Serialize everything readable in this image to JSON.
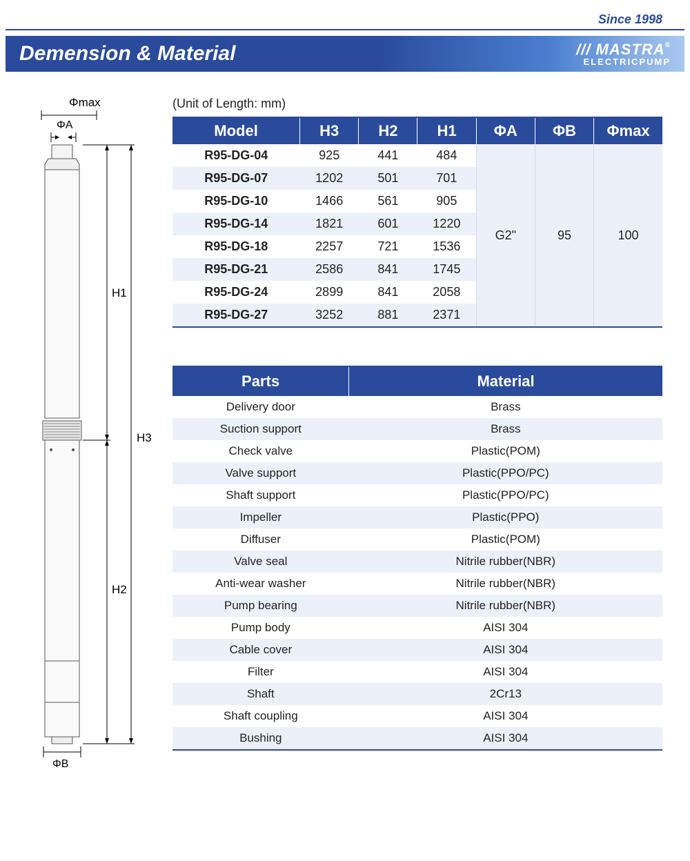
{
  "header": {
    "tagline": "Since 1998",
    "title": "Demension & Material",
    "brand_logo": "MASTRA",
    "brand_sub": "ELECTRICPUMP"
  },
  "diagram": {
    "labels": {
      "phimax": "Φmax",
      "phiA": "ΦA",
      "phiB": "ΦB",
      "H1": "H1",
      "H2": "H2",
      "H3": "H3"
    }
  },
  "unit_label": "(Unit of Length: mm)",
  "spec_table": {
    "headers": [
      "Model",
      "H3",
      "H2",
      "H1",
      "ΦA",
      "ΦB",
      "Φmax"
    ],
    "rows": [
      {
        "model": "R95-DG-04",
        "h3": "925",
        "h2": "441",
        "h1": "484"
      },
      {
        "model": "R95-DG-07",
        "h3": "1202",
        "h2": "501",
        "h1": "701"
      },
      {
        "model": "R95-DG-10",
        "h3": "1466",
        "h2": "561",
        "h1": "905"
      },
      {
        "model": "R95-DG-14",
        "h3": "1821",
        "h2": "601",
        "h1": "1220"
      },
      {
        "model": "R95-DG-18",
        "h3": "2257",
        "h2": "721",
        "h1": "1536"
      },
      {
        "model": "R95-DG-21",
        "h3": "2586",
        "h2": "841",
        "h1": "1745"
      },
      {
        "model": "R95-DG-24",
        "h3": "2899",
        "h2": "841",
        "h1": "2058"
      },
      {
        "model": "R95-DG-27",
        "h3": "3252",
        "h2": "881",
        "h1": "2371"
      }
    ],
    "merged": {
      "phiA": "G2\"",
      "phiB": "95",
      "phimax": "100"
    }
  },
  "parts_table": {
    "headers": [
      "Parts",
      "Material"
    ],
    "rows": [
      {
        "part": "Delivery door",
        "material": "Brass"
      },
      {
        "part": "Suction support",
        "material": "Brass"
      },
      {
        "part": "Check valve",
        "material": "Plastic(POM)"
      },
      {
        "part": "Valve support",
        "material": "Plastic(PPO/PC)"
      },
      {
        "part": "Shaft support",
        "material": "Plastic(PPO/PC)"
      },
      {
        "part": "Impeller",
        "material": "Plastic(PPO)"
      },
      {
        "part": "Diffuser",
        "material": "Plastic(POM)"
      },
      {
        "part": "Valve seal",
        "material": "Nitrile rubber(NBR)"
      },
      {
        "part": "Anti-wear washer",
        "material": "Nitrile rubber(NBR)"
      },
      {
        "part": "Pump bearing",
        "material": "Nitrile rubber(NBR)"
      },
      {
        "part": "Pump body",
        "material": "AISI 304"
      },
      {
        "part": "Cable cover",
        "material": "AISI 304"
      },
      {
        "part": "Filter",
        "material": "AISI 304"
      },
      {
        "part": "Shaft",
        "material": "2Cr13"
      },
      {
        "part": "Shaft coupling",
        "material": "AISI 304"
      },
      {
        "part": "Bushing",
        "material": "AISI 304"
      }
    ]
  },
  "colors": {
    "brand_blue": "#2a4b9b",
    "row_alt": "#ecf1f9"
  }
}
